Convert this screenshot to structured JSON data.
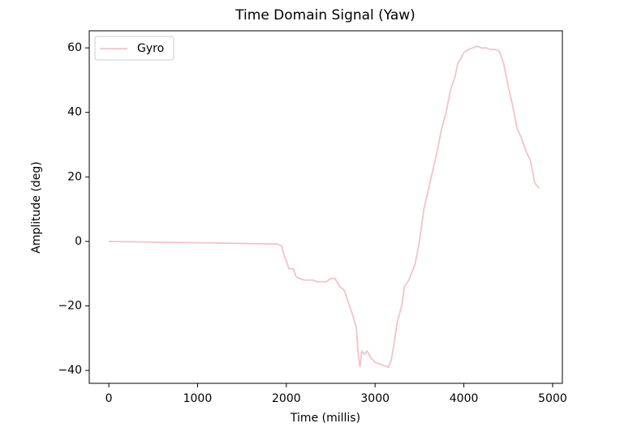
{
  "chart_data": {
    "type": "line",
    "title": "Time Domain Signal (Yaw)",
    "xlabel": "Time (millis)",
    "ylabel": "Amplitude (deg)",
    "x": [
      0,
      1900,
      1950,
      1980,
      2000,
      2030,
      2080,
      2110,
      2150,
      2200,
      2300,
      2350,
      2450,
      2500,
      2550,
      2600,
      2650,
      2700,
      2750,
      2790,
      2810,
      2830,
      2850,
      2880,
      2910,
      2950,
      3000,
      3050,
      3100,
      3150,
      3180,
      3200,
      3250,
      3300,
      3330,
      3380,
      3450,
      3500,
      3550,
      3600,
      3700,
      3750,
      3800,
      3850,
      3900,
      3930,
      4000,
      4050,
      4100,
      4150,
      4200,
      4250,
      4300,
      4350,
      4400,
      4450,
      4500,
      4550,
      4600,
      4650,
      4700,
      4750,
      4800,
      4850
    ],
    "series": [
      {
        "name": "Gyro",
        "color": "#f4c2c9",
        "values": [
          0,
          -0.8,
          -1.5,
          -5,
          -6,
          -8.5,
          -8.5,
          -11,
          -11.5,
          -12,
          -12,
          -12.5,
          -12.5,
          -11.5,
          -11.5,
          -14,
          -15,
          -19,
          -23,
          -27,
          -35,
          -39,
          -34,
          -35,
          -34,
          -36,
          -37.5,
          -38,
          -38.5,
          -39,
          -37,
          -34,
          -25,
          -20,
          -14,
          -12,
          -7,
          0,
          10,
          16,
          28,
          35,
          40,
          47,
          51,
          55,
          58.5,
          59.5,
          60,
          60.5,
          60,
          60,
          59.5,
          59.5,
          59,
          55,
          48,
          42,
          35,
          32,
          28,
          25,
          18,
          16.5
        ]
      }
    ],
    "xlim": [
      -220,
      5110
    ],
    "xticks": [
      0,
      1000,
      2000,
      3000,
      4000,
      5000
    ],
    "ylim": [
      -44,
      65.3
    ],
    "yticks": [
      {
        "value": -40,
        "label": "−40"
      },
      {
        "value": -20,
        "label": "−20"
      },
      0,
      20,
      40,
      60
    ],
    "grid": false,
    "legend": "upper left"
  }
}
